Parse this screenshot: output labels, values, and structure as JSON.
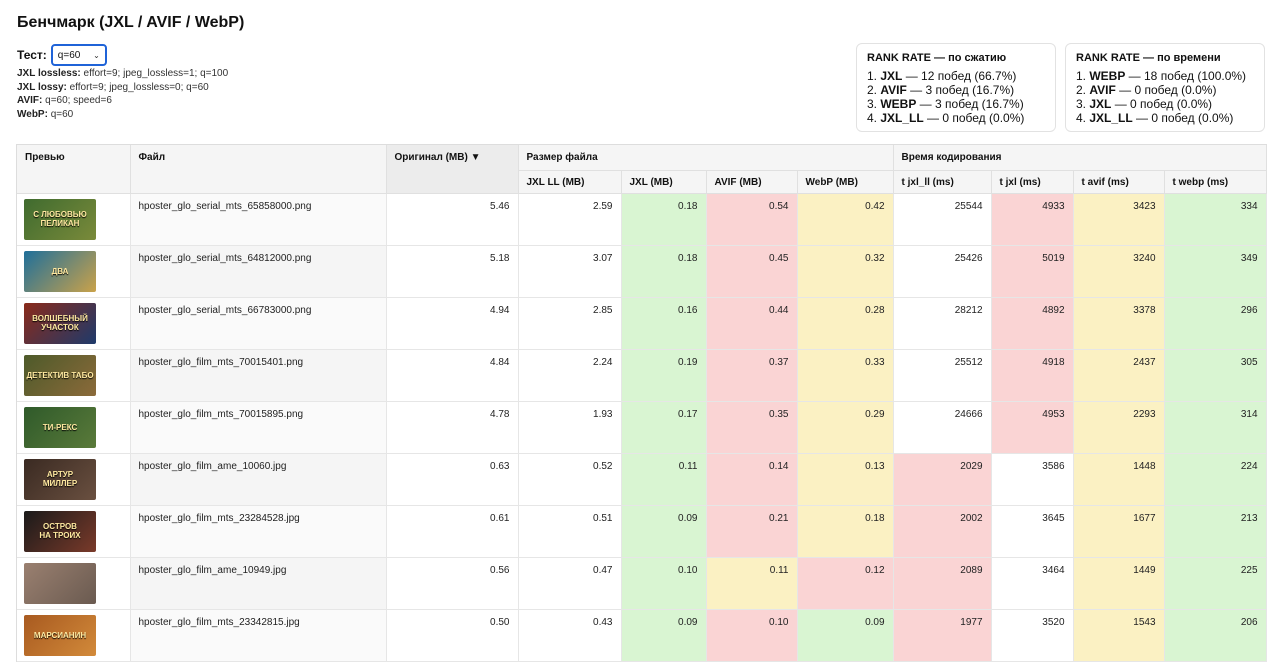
{
  "page": {
    "title": "Бенчмарк (JXL / AVIF / WebP)"
  },
  "test": {
    "label": "Тест:",
    "selected": "q=60"
  },
  "params": [
    {
      "name": "JXL lossless:",
      "value": " effort=9; jpeg_lossless=1; q=100"
    },
    {
      "name": "JXL lossy:",
      "value": " effort=9; jpeg_lossless=0; q=60"
    },
    {
      "name": "AVIF:",
      "value": " q=60; speed=6"
    },
    {
      "name": "WebP:",
      "value": " q=60"
    }
  ],
  "rank_compression": {
    "title": "RANK RATE — по сжатию",
    "items": [
      {
        "pos": "1. ",
        "name": "JXL",
        "text": " — 12 побед (66.7%)"
      },
      {
        "pos": "2. ",
        "name": "AVIF",
        "text": " — 3 побед (16.7%)"
      },
      {
        "pos": "3. ",
        "name": "WEBP",
        "text": " — 3 побед (16.7%)"
      },
      {
        "pos": "4. ",
        "name": "JXL_LL",
        "text": " — 0 побед (0.0%)"
      }
    ]
  },
  "rank_time": {
    "title": "RANK RATE — по времени",
    "items": [
      {
        "pos": "1. ",
        "name": "WEBP",
        "text": " — 18 побед (100.0%)"
      },
      {
        "pos": "2. ",
        "name": "AVIF",
        "text": " — 0 побед (0.0%)"
      },
      {
        "pos": "3. ",
        "name": "JXL",
        "text": " — 0 побед (0.0%)"
      },
      {
        "pos": "4. ",
        "name": "JXL_LL",
        "text": " — 0 побед (0.0%)"
      }
    ]
  },
  "table": {
    "headers": {
      "preview": "Превью",
      "file": "Файл",
      "original": "Оригинал (MB) ▼",
      "size_group": "Размер файла",
      "time_group": "Время кодирования",
      "jxl_ll": "JXL LL (MB)",
      "jxl": "JXL (MB)",
      "avif": "AVIF (MB)",
      "webp": "WebP (MB)",
      "t_jxl_ll": "t jxl_ll (ms)",
      "t_jxl": "t jxl (ms)",
      "t_avif": "t avif (ms)",
      "t_webp": "t webp (ms)"
    },
    "rows": [
      {
        "thumb": "С ЛЮБОВЬЮ\nПЕЛИКАН",
        "thumb_colors": [
          "#3f6b2f",
          "#7a8a3a"
        ],
        "file": "hposter_glo_serial_mts_65858000.png",
        "orig": "5.46",
        "jxl_ll": "2.59",
        "jxl": "0.18",
        "avif": "0.54",
        "webp": "0.42",
        "t_jxl_ll": "25544",
        "t_jxl": "4933",
        "t_avif": "3423",
        "t_webp": "334",
        "c": [
          "w",
          "g",
          "r",
          "y",
          "w",
          "r",
          "y",
          "g"
        ]
      },
      {
        "thumb": "ДВА",
        "thumb_colors": [
          "#1f6f9a",
          "#caa24a"
        ],
        "file": "hposter_glo_serial_mts_64812000.png",
        "orig": "5.18",
        "jxl_ll": "3.07",
        "jxl": "0.18",
        "avif": "0.45",
        "webp": "0.32",
        "t_jxl_ll": "25426",
        "t_jxl": "5019",
        "t_avif": "3240",
        "t_webp": "349",
        "c": [
          "w",
          "g",
          "r",
          "y",
          "w",
          "r",
          "y",
          "g"
        ]
      },
      {
        "thumb": "ВОЛШЕБНЫЙ\nУЧАСТОК",
        "thumb_colors": [
          "#8a2a1a",
          "#1e3a6b"
        ],
        "file": "hposter_glo_serial_mts_66783000.png",
        "orig": "4.94",
        "jxl_ll": "2.85",
        "jxl": "0.16",
        "avif": "0.44",
        "webp": "0.28",
        "t_jxl_ll": "28212",
        "t_jxl": "4892",
        "t_avif": "3378",
        "t_webp": "296",
        "c": [
          "w",
          "g",
          "r",
          "y",
          "w",
          "r",
          "y",
          "g"
        ]
      },
      {
        "thumb": "ДЕТЕКТИВ ТАБО",
        "thumb_colors": [
          "#4d5a2a",
          "#8b6a3a"
        ],
        "file": "hposter_glo_film_mts_70015401.png",
        "orig": "4.84",
        "jxl_ll": "2.24",
        "jxl": "0.19",
        "avif": "0.37",
        "webp": "0.33",
        "t_jxl_ll": "25512",
        "t_jxl": "4918",
        "t_avif": "2437",
        "t_webp": "305",
        "c": [
          "w",
          "g",
          "r",
          "y",
          "w",
          "r",
          "y",
          "g"
        ]
      },
      {
        "thumb": "ТИ-РЕКС",
        "thumb_colors": [
          "#2f5a2a",
          "#5a7a3a"
        ],
        "file": "hposter_glo_film_mts_70015895.png",
        "orig": "4.78",
        "jxl_ll": "1.93",
        "jxl": "0.17",
        "avif": "0.35",
        "webp": "0.29",
        "t_jxl_ll": "24666",
        "t_jxl": "4953",
        "t_avif": "2293",
        "t_webp": "314",
        "c": [
          "w",
          "g",
          "r",
          "y",
          "w",
          "r",
          "y",
          "g"
        ]
      },
      {
        "thumb": "АРТУР\nМИЛЛЕР",
        "thumb_colors": [
          "#3a2a22",
          "#6a5040"
        ],
        "file": "hposter_glo_film_ame_10060.jpg",
        "orig": "0.63",
        "jxl_ll": "0.52",
        "jxl": "0.11",
        "avif": "0.14",
        "webp": "0.13",
        "t_jxl_ll": "2029",
        "t_jxl": "3586",
        "t_avif": "1448",
        "t_webp": "224",
        "c": [
          "w",
          "g",
          "r",
          "y",
          "r",
          "w",
          "y",
          "g"
        ]
      },
      {
        "thumb": "ОСТРОВ\nНА ТРОИХ",
        "thumb_colors": [
          "#1a1a1a",
          "#7a3a2a"
        ],
        "file": "hposter_glo_film_mts_23284528.jpg",
        "orig": "0.61",
        "jxl_ll": "0.51",
        "jxl": "0.09",
        "avif": "0.21",
        "webp": "0.18",
        "t_jxl_ll": "2002",
        "t_jxl": "3645",
        "t_avif": "1677",
        "t_webp": "213",
        "c": [
          "w",
          "g",
          "r",
          "y",
          "r",
          "w",
          "y",
          "g"
        ]
      },
      {
        "thumb": "",
        "thumb_colors": [
          "#9a8070",
          "#6a5a50"
        ],
        "file": "hposter_glo_film_ame_10949.jpg",
        "orig": "0.56",
        "jxl_ll": "0.47",
        "jxl": "0.10",
        "avif": "0.11",
        "webp": "0.12",
        "t_jxl_ll": "2089",
        "t_jxl": "3464",
        "t_avif": "1449",
        "t_webp": "225",
        "c": [
          "w",
          "g",
          "y",
          "r",
          "r",
          "w",
          "y",
          "g"
        ]
      },
      {
        "thumb": "МАРСИАНИН",
        "thumb_colors": [
          "#a85a20",
          "#d28a3a"
        ],
        "file": "hposter_glo_film_mts_23342815.jpg",
        "orig": "0.50",
        "jxl_ll": "0.43",
        "jxl": "0.09",
        "avif": "0.10",
        "webp": "0.09",
        "t_jxl_ll": "1977",
        "t_jxl": "3520",
        "t_avif": "1543",
        "t_webp": "206",
        "c": [
          "w",
          "g",
          "r",
          "g",
          "r",
          "w",
          "y",
          "g"
        ]
      }
    ]
  }
}
